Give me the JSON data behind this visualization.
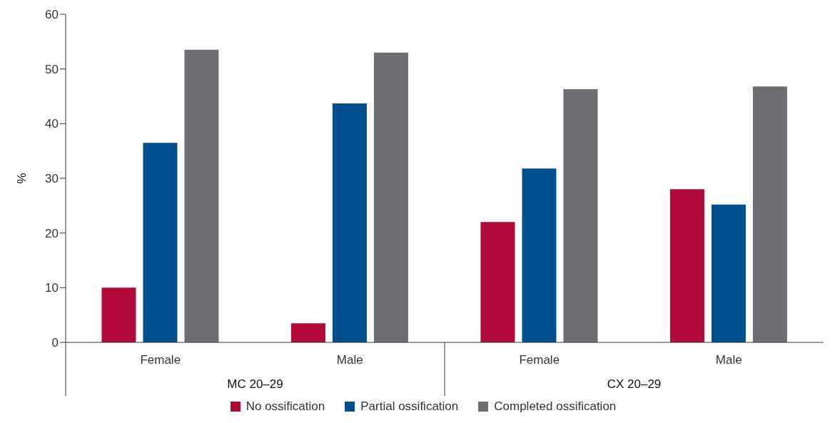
{
  "chart_data": {
    "type": "bar",
    "ylabel": "%",
    "categories": [
      "Female",
      "Male",
      "Female",
      "Male"
    ],
    "annotations": [
      "MC 20–29",
      "CX 20–29"
    ],
    "series": [
      {
        "name": "No ossification",
        "color": "#b10a3a",
        "values": [
          10,
          3.5,
          22,
          28
        ]
      },
      {
        "name": "Partial ossification",
        "color": "#00508f",
        "values": [
          36.5,
          43.7,
          31.8,
          25.2
        ]
      },
      {
        "name": "Completed ossification",
        "color": "#6d6e71",
        "values": [
          53.5,
          53,
          46.3,
          46.8
        ]
      }
    ],
    "ylim": [
      0,
      60
    ],
    "yticks": [
      0,
      10,
      20,
      30,
      40,
      50,
      60
    ],
    "grid": false,
    "legend": "bottom"
  }
}
